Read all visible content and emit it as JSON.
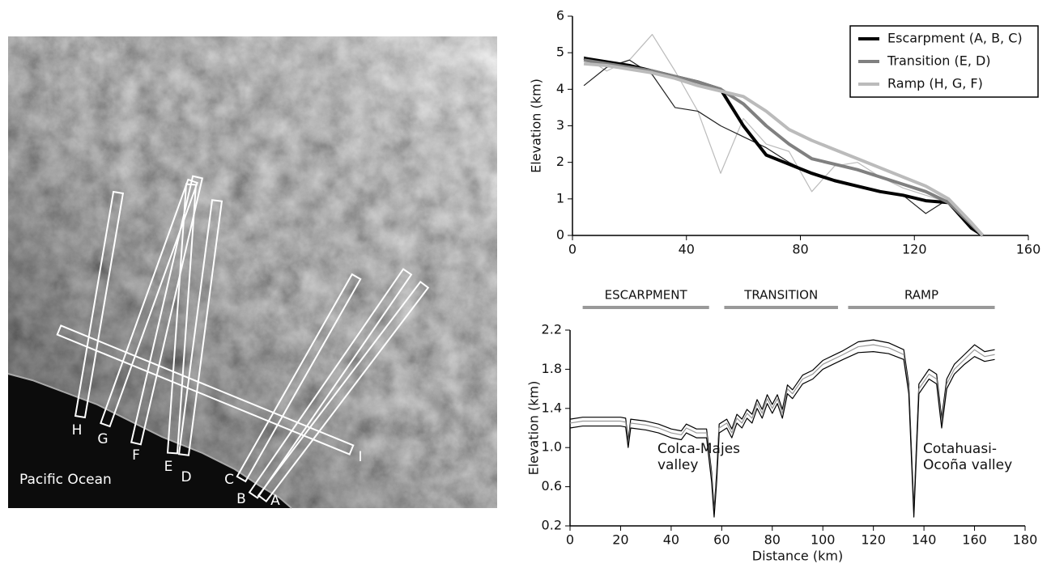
{
  "map": {
    "transect_labels": [
      "H",
      "G",
      "F",
      "E",
      "D",
      "C",
      "B",
      "A",
      "I"
    ],
    "ocean_label": "Pacific Ocean"
  },
  "chart_data": [
    {
      "type": "line",
      "y_label": "Elevation (km)",
      "xlim": [
        0,
        160
      ],
      "xticks": [
        0,
        40,
        80,
        120,
        160
      ],
      "ylim": [
        0,
        6
      ],
      "yticks": [
        0,
        1,
        2,
        3,
        4,
        5,
        6
      ],
      "legend": "upper right",
      "x": [
        4,
        12,
        20,
        28,
        36,
        44,
        52,
        60,
        68,
        76,
        84,
        92,
        100,
        108,
        116,
        124,
        132,
        140,
        144
      ],
      "series": [
        {
          "color": "#bbbbbb",
          "values": [
            4.9,
            4.5,
            4.8,
            5.5,
            4.5,
            3.4,
            1.7,
            3.2,
            2.5,
            2.3,
            1.2,
            1.9,
            2.0,
            1.6,
            1.3,
            1.1,
            0.9,
            0.3,
            0
          ]
        },
        {
          "color": "#222222",
          "values": [
            4.1,
            4.6,
            4.8,
            4.4,
            3.5,
            3.4,
            3.0,
            2.7,
            2.4,
            2.0,
            1.7,
            1.5,
            1.35,
            1.2,
            1.1,
            0.6,
            1.0,
            0.2,
            0
          ]
        },
        {
          "name": "Escarpment (A, B, C)",
          "color": "#000000",
          "values": [
            4.85,
            4.75,
            4.65,
            4.5,
            4.35,
            4.2,
            4.0,
            3.0,
            2.2,
            1.95,
            1.7,
            1.5,
            1.35,
            1.2,
            1.1,
            0.95,
            0.9,
            0.2,
            0
          ]
        },
        {
          "name": "Transition (E, D)",
          "color": "#808080",
          "values": [
            4.8,
            4.7,
            4.6,
            4.5,
            4.35,
            4.2,
            4.0,
            3.6,
            3.0,
            2.5,
            2.1,
            1.95,
            1.8,
            1.6,
            1.4,
            1.2,
            0.9,
            0.3,
            0
          ]
        },
        {
          "name": "Ramp (H, G, F)",
          "color": "#bbbbbb",
          "values": [
            4.7,
            4.65,
            4.55,
            4.45,
            4.3,
            4.1,
            3.95,
            3.8,
            3.4,
            2.9,
            2.6,
            2.35,
            2.1,
            1.85,
            1.6,
            1.35,
            1.0,
            0.35,
            0
          ]
        }
      ]
    },
    {
      "type": "line",
      "x_label": "Distance (km)",
      "y_label": "Elevation (km)",
      "xlim": [
        0,
        180
      ],
      "xticks": [
        0,
        20,
        40,
        60,
        80,
        100,
        120,
        140,
        160,
        180
      ],
      "ylim": [
        0.2,
        2.2
      ],
      "yticks": [
        0.2,
        0.6,
        {
          "value": 1,
          "label": "1.0"
        },
        1.4,
        1.8,
        2.2
      ],
      "zones": [
        {
          "label": "ESCARPMENT",
          "x": [
            5,
            55
          ]
        },
        {
          "label": "TRANSITION",
          "x": [
            61,
            106
          ]
        },
        {
          "label": "RAMP",
          "x": [
            110,
            168
          ]
        }
      ],
      "annotations": [
        [
          "Colca-Majes",
          "valley"
        ],
        [
          "Cotahuasi-",
          "Ocoña valley"
        ]
      ],
      "x": [
        0,
        5,
        10,
        15,
        20,
        22,
        23,
        24,
        30,
        35,
        40,
        44,
        46,
        50,
        54,
        56,
        57,
        58,
        59,
        62,
        64,
        66,
        68,
        70,
        72,
        74,
        76,
        78,
        80,
        82,
        84,
        86,
        88,
        92,
        96,
        100,
        104,
        108,
        114,
        120,
        126,
        132,
        134,
        136,
        138,
        142,
        145,
        147,
        149,
        152,
        156,
        160,
        164,
        168
      ],
      "series": [
        {
          "color": "#000000",
          "values": [
            1.29,
            1.31,
            1.31,
            1.31,
            1.31,
            1.3,
            1.07,
            1.29,
            1.27,
            1.24,
            1.19,
            1.17,
            1.24,
            1.19,
            1.19,
            0.75,
            0.36,
            0.75,
            1.24,
            1.29,
            1.19,
            1.34,
            1.29,
            1.39,
            1.34,
            1.49,
            1.39,
            1.54,
            1.44,
            1.54,
            1.39,
            1.64,
            1.59,
            1.74,
            1.79,
            1.89,
            1.94,
            1.99,
            2.08,
            2.1,
            2.07,
            2.0,
            1.65,
            0.37,
            1.65,
            1.8,
            1.75,
            1.3,
            1.7,
            1.85,
            1.95,
            2.05,
            1.98,
            2.0
          ]
        },
        {
          "color": "#999999",
          "values": [
            1.25,
            1.27,
            1.27,
            1.27,
            1.27,
            1.26,
            1.03,
            1.25,
            1.23,
            1.2,
            1.15,
            1.13,
            1.2,
            1.15,
            1.15,
            0.7,
            0.32,
            0.7,
            1.2,
            1.25,
            1.15,
            1.3,
            1.25,
            1.35,
            1.3,
            1.45,
            1.35,
            1.5,
            1.4,
            1.5,
            1.35,
            1.6,
            1.55,
            1.7,
            1.75,
            1.85,
            1.9,
            1.95,
            2.03,
            2.05,
            2.02,
            1.95,
            1.6,
            0.33,
            1.6,
            1.75,
            1.7,
            1.25,
            1.65,
            1.8,
            1.9,
            2.0,
            1.93,
            1.95
          ]
        },
        {
          "color": "#000000",
          "values": [
            1.2,
            1.22,
            1.22,
            1.22,
            1.22,
            1.21,
            1.0,
            1.2,
            1.18,
            1.15,
            1.1,
            1.08,
            1.15,
            1.1,
            1.1,
            0.65,
            0.29,
            0.65,
            1.15,
            1.2,
            1.1,
            1.25,
            1.2,
            1.3,
            1.25,
            1.4,
            1.3,
            1.45,
            1.35,
            1.45,
            1.3,
            1.55,
            1.5,
            1.65,
            1.7,
            1.8,
            1.85,
            1.9,
            1.97,
            1.98,
            1.96,
            1.9,
            1.55,
            0.29,
            1.55,
            1.7,
            1.65,
            1.2,
            1.6,
            1.75,
            1.85,
            1.93,
            1.88,
            1.9
          ]
        }
      ]
    }
  ]
}
